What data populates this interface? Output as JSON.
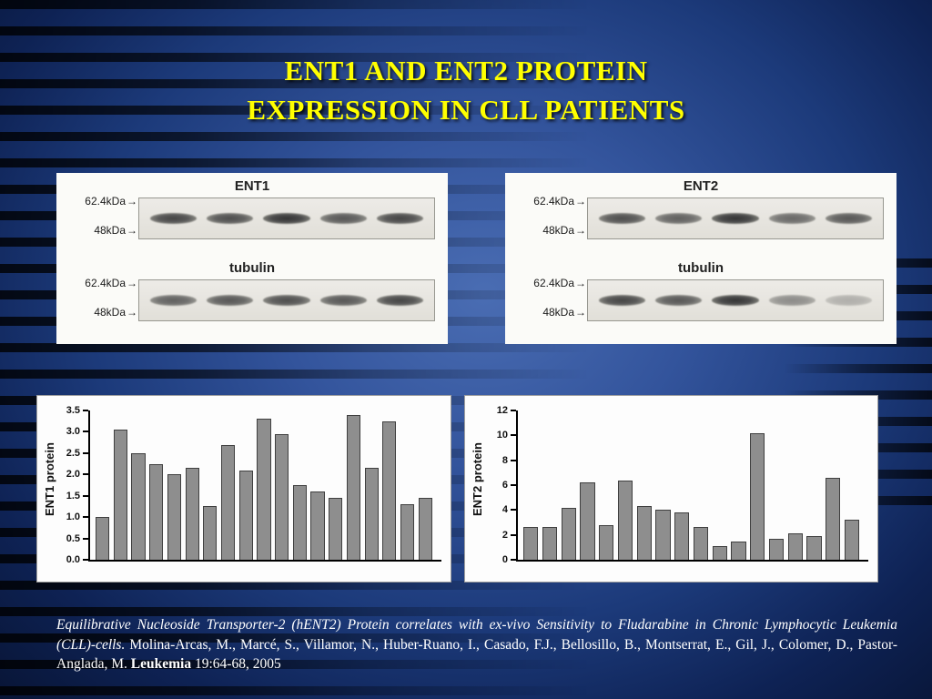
{
  "slide": {
    "title_line1": "ENT1 AND ENT2 PROTEIN",
    "title_line2": "EXPRESSION IN CLL PATIENTS"
  },
  "colors": {
    "title_yellow": "#FFFF00",
    "background_blue": "#2F55A0",
    "stripe_black": "#000000",
    "bar_gray": "#8E8E8E",
    "panel_white": "#FDFDFD"
  },
  "icons": {
    "marker_arrow": "→"
  },
  "blot_panels": [
    {
      "blots": [
        {
          "label": "ENT1",
          "marker_top": "62.4kDa",
          "marker_bottom": "48kDa",
          "bands": [
            0.9,
            0.85,
            1,
            0.8,
            0.9
          ]
        },
        {
          "label": "tubulin",
          "marker_top": "62.4kDa",
          "marker_bottom": "48kDa",
          "bands": [
            0.75,
            0.8,
            0.85,
            0.8,
            0.9
          ]
        }
      ]
    },
    {
      "blots": [
        {
          "label": "ENT2",
          "marker_top": "62.4kDa",
          "marker_bottom": "48kDa",
          "bands": [
            0.85,
            0.75,
            1,
            0.7,
            0.8
          ]
        },
        {
          "label": "tubulin",
          "marker_top": "62.4kDa",
          "marker_bottom": "48kDa",
          "bands": [
            0.9,
            0.8,
            1,
            0.5,
            0.3
          ]
        }
      ]
    }
  ],
  "chart_data": [
    {
      "type": "bar",
      "title": "",
      "xlabel": "",
      "ylabel": "ENT1 protein",
      "ylim": [
        0,
        3.5
      ],
      "yticks": [
        "0.0",
        "0.5",
        "1.0",
        "1.5",
        "2.0",
        "2.5",
        "3.0",
        "3.5"
      ],
      "grid": false,
      "legend": false,
      "values": [
        1.0,
        3.05,
        2.5,
        2.25,
        2.0,
        2.15,
        1.25,
        2.7,
        2.1,
        3.3,
        2.95,
        1.75,
        1.6,
        1.45,
        3.4,
        2.15,
        3.25,
        1.3,
        1.45
      ]
    },
    {
      "type": "bar",
      "title": "",
      "xlabel": "",
      "ylabel": "ENT2 protein",
      "ylim": [
        0,
        12
      ],
      "yticks": [
        "0",
        "2",
        "4",
        "6",
        "8",
        "10",
        "12"
      ],
      "grid": false,
      "legend": false,
      "values": [
        2.6,
        2.6,
        4.2,
        6.2,
        2.8,
        6.4,
        4.3,
        4.0,
        3.8,
        2.6,
        1.1,
        1.5,
        10.2,
        1.7,
        2.1,
        1.9,
        6.6,
        3.2
      ]
    }
  ],
  "citation": {
    "title": "Equilibrative Nucleoside Transporter-2 (hENT2) Protein correlates with ex-vivo Sensitivity to Fludarabine in Chronic Lymphocytic Leukemia (CLL)-cells.",
    "authors": " Molina-Arcas, M., Marcé, S., Villamor, N., Huber-Ruano, I., Casado, F.J., Bellosillo, B., Montserrat, E., Gil, J., Colomer, D., Pastor-Anglada, M. ",
    "journal": "Leukemia",
    "tail": " 19:64-68, 2005"
  }
}
